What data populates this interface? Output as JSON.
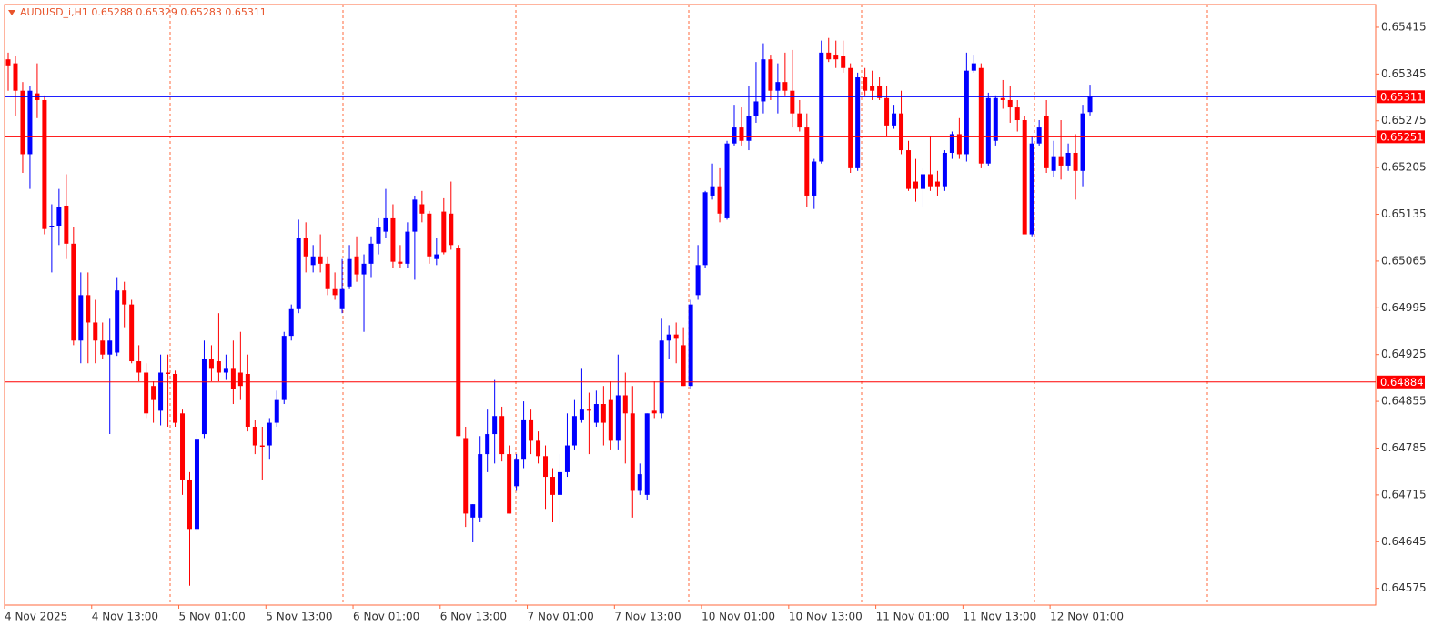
{
  "chart_data": {
    "type": "candlestick",
    "title": "AUDUSD_i,H1  0.65288 0.65329 0.65283 0.65311",
    "categories": [
      "4 Nov 2025",
      null,
      null,
      null,
      null,
      null,
      null,
      null,
      null,
      null,
      null,
      null,
      "4 Nov 13:00",
      null,
      null,
      null,
      null,
      null,
      null,
      null,
      null,
      null,
      null,
      null,
      "5 Nov 01:00",
      null,
      null,
      null,
      null,
      null,
      null,
      null,
      null,
      null,
      null,
      null,
      "5 Nov 13:00",
      null,
      null,
      null,
      null,
      null,
      null,
      null,
      null,
      null,
      null,
      null,
      "6 Nov 01:00",
      null,
      null,
      null,
      null,
      null,
      null,
      null,
      null,
      null,
      null,
      null,
      "6 Nov 13:00",
      null,
      null,
      null,
      null,
      null,
      null,
      null,
      null,
      null,
      null,
      null,
      "7 Nov 01:00",
      null,
      null,
      null,
      null,
      null,
      null,
      null,
      null,
      null,
      null,
      null,
      "7 Nov 13:00",
      null,
      null,
      null,
      null,
      null,
      null,
      null,
      null,
      null,
      null,
      null,
      "10 Nov 01:00",
      null,
      null,
      null,
      null,
      null,
      null,
      null,
      null,
      null,
      null,
      null,
      "10 Nov 13:00",
      null,
      null,
      null,
      null,
      null,
      null,
      null,
      null,
      null,
      null,
      null,
      "11 Nov 01:00",
      null,
      null,
      null,
      null,
      null,
      null,
      null,
      null,
      null,
      null,
      null,
      "11 Nov 13:00",
      null,
      null,
      null,
      null,
      null,
      null,
      null,
      null,
      null,
      null,
      null,
      "12 Nov 01:00",
      null,
      null,
      null,
      null,
      null
    ],
    "open": [
      0.65367,
      0.65361,
      0.6532,
      0.65225,
      0.65316,
      0.65306,
      0.65116,
      0.65118,
      0.65148,
      0.65091,
      0.64946,
      0.65014,
      0.64973,
      0.64946,
      0.64925,
      0.64928,
      0.65021,
      0.65,
      0.64915,
      0.64898,
      0.64878,
      0.64841,
      0.64898,
      0.64896,
      0.64837,
      0.64738,
      0.64664,
      0.64806,
      0.64919,
      0.64915,
      0.64898,
      0.64905,
      0.64898,
      0.64896,
      0.64817,
      0.64789,
      0.64789,
      0.64823,
      0.64857,
      0.64953,
      0.64993,
      0.65099,
      0.65059,
      0.65072,
      0.65061,
      0.65023,
      0.64993,
      0.65027,
      0.65072,
      0.65045,
      0.65061,
      0.65091,
      0.65109,
      0.65129,
      0.65064,
      0.65061,
      0.65109,
      0.6515,
      0.65136,
      0.65068,
      0.65139,
      0.65136,
      0.65085,
      0.648,
      0.64681,
      0.64681,
      0.64776,
      0.64806,
      0.64833,
      0.64776,
      0.64728,
      0.64769,
      0.64828,
      0.64796,
      0.64773,
      0.64742,
      0.64715,
      0.64749,
      0.64789,
      0.64828,
      0.64844,
      0.64823,
      0.64851,
      0.64857,
      0.64796,
      0.64864,
      0.64837,
      0.64721,
      0.64715,
      0.64841,
      0.64837,
      0.64946,
      0.64955,
      0.64939,
      0.64878,
      0.65014,
      0.65059,
      0.65163,
      0.65177,
      0.65129,
      0.65241,
      0.65265,
      0.65245,
      0.65282,
      0.65304,
      0.65367,
      0.6532,
      0.65333,
      0.6532,
      0.65286,
      0.65265,
      0.65163,
      0.65214,
      0.65377,
      0.65374,
      0.65372,
      0.65354,
      0.65204,
      0.6534,
      0.65327,
      0.65327,
      0.65309,
      0.65268,
      0.65286,
      0.65231,
      0.65184,
      0.65173,
      0.65195,
      0.65184,
      0.65177,
      0.65227,
      0.65255,
      0.65225,
      0.6535,
      0.65354,
      0.65211,
      0.65245,
      0.65309,
      0.65306,
      0.65295,
      0.65276,
      0.65105,
      0.65241,
      0.65282,
      0.652,
      0.65222,
      0.65208,
      0.65227,
      0.652,
      0.65288
    ],
    "high": [
      0.65377,
      0.65372,
      0.65333,
      0.65327,
      0.65361,
      0.65313,
      0.6515,
      0.65173,
      0.65195,
      0.65116,
      0.65048,
      0.65048,
      0.65007,
      0.64973,
      0.6498,
      0.65041,
      0.65034,
      0.65007,
      0.64939,
      0.64912,
      0.64885,
      0.64925,
      0.64925,
      0.64901,
      0.64844,
      0.64749,
      0.64806,
      0.64946,
      0.64939,
      0.64987,
      0.64925,
      0.64946,
      0.64959,
      0.64925,
      0.64827,
      0.64817,
      0.6483,
      0.64871,
      0.64959,
      0.65,
      0.65127,
      0.65123,
      0.65089,
      0.65105,
      0.65072,
      0.65048,
      0.65068,
      0.65089,
      0.65102,
      0.65075,
      0.65102,
      0.65129,
      0.65173,
      0.6515,
      0.65089,
      0.65123,
      0.65163,
      0.6517,
      0.6514,
      0.65099,
      0.65159,
      0.65184,
      0.65089,
      0.64817,
      0.64701,
      0.64803,
      0.64844,
      0.64887,
      0.64847,
      0.64789,
      0.64776,
      0.64855,
      0.64844,
      0.6481,
      0.64789,
      0.64755,
      0.64776,
      0.64837,
      0.64857,
      0.64905,
      0.64868,
      0.64871,
      0.64878,
      0.64885,
      0.64925,
      0.64898,
      0.64878,
      0.64762,
      0.64837,
      0.64885,
      0.6498,
      0.64969,
      0.64973,
      0.64966,
      0.65007,
      0.65089,
      0.6517,
      0.65211,
      0.65204,
      0.65245,
      0.65299,
      0.65295,
      0.65327,
      0.65363,
      0.65391,
      0.65374,
      0.65361,
      0.65377,
      0.65381,
      0.65306,
      0.65286,
      0.65218,
      0.65395,
      0.65399,
      0.65395,
      0.65395,
      0.65361,
      0.65347,
      0.65354,
      0.6535,
      0.6534,
      0.65327,
      0.65299,
      0.6532,
      0.65245,
      0.65218,
      0.65204,
      0.65252,
      0.652,
      0.65231,
      0.65259,
      0.65279,
      0.65377,
      0.65374,
      0.65361,
      0.65317,
      0.65313,
      0.65336,
      0.65327,
      0.65306,
      0.65282,
      0.65252,
      0.65276,
      0.65306,
      0.65245,
      0.65276,
      0.65241,
      0.65255,
      0.65299,
      0.65329
    ],
    "low": [
      0.6532,
      0.65282,
      0.65197,
      0.65173,
      0.65279,
      0.65105,
      0.65048,
      0.65089,
      0.65068,
      0.64939,
      0.64912,
      0.64912,
      0.64912,
      0.64919,
      0.64806,
      0.64923,
      0.64966,
      0.64912,
      0.64885,
      0.6483,
      0.64823,
      0.64819,
      0.64817,
      0.64817,
      0.64715,
      0.64579,
      0.6466,
      0.648,
      0.64885,
      0.64885,
      0.64887,
      0.64851,
      0.64857,
      0.6481,
      0.64776,
      0.64738,
      0.64769,
      0.64817,
      0.64851,
      0.64946,
      0.64987,
      0.65048,
      0.65048,
      0.65048,
      0.65014,
      0.65007,
      0.64987,
      0.65023,
      0.65034,
      0.64959,
      0.65041,
      0.65075,
      0.65099,
      0.65055,
      0.65055,
      0.65055,
      0.65037,
      0.65123,
      0.65061,
      0.65059,
      0.65075,
      0.65082,
      0.64803,
      0.64667,
      0.64644,
      0.64674,
      0.64749,
      0.64762,
      0.64765,
      0.64687,
      0.64721,
      0.64755,
      0.64776,
      0.64762,
      0.64694,
      0.64674,
      0.64671,
      0.64742,
      0.64783,
      0.64823,
      0.64776,
      0.64817,
      0.64789,
      0.64783,
      0.64783,
      0.64762,
      0.64681,
      0.64715,
      0.64708,
      0.6483,
      0.6483,
      0.64919,
      0.64912,
      0.64878,
      0.64874,
      0.65007,
      0.65055,
      0.65157,
      0.65123,
      0.65127,
      0.65238,
      0.65238,
      0.65231,
      0.65272,
      0.65286,
      0.65306,
      0.65286,
      0.65313,
      0.65265,
      0.65259,
      0.65146,
      0.65143,
      0.65211,
      0.65363,
      0.65354,
      0.65347,
      0.65197,
      0.652,
      0.65313,
      0.65306,
      0.65306,
      0.65252,
      0.65263,
      0.65225,
      0.6517,
      0.65154,
      0.65146,
      0.6517,
      0.65163,
      0.6517,
      0.65218,
      0.65218,
      0.65214,
      0.65347,
      0.65204,
      0.65208,
      0.65238,
      0.65293,
      0.65272,
      0.65259,
      0.65105,
      0.65102,
      0.65238,
      0.65197,
      0.65191,
      0.65187,
      0.652,
      0.65157,
      0.65177,
      0.65283
    ],
    "close": [
      0.65358,
      0.6532,
      0.65225,
      0.6532,
      0.65306,
      0.65113,
      0.65118,
      0.65146,
      0.65091,
      0.64946,
      0.65014,
      0.64973,
      0.64946,
      0.64925,
      0.64946,
      0.65021,
      0.65,
      0.64915,
      0.64898,
      0.64837,
      0.64857,
      0.64898,
      0.64896,
      0.64823,
      0.64738,
      0.64664,
      0.64799,
      0.64919,
      0.64905,
      0.64898,
      0.64905,
      0.64874,
      0.64878,
      0.64817,
      0.64789,
      0.64787,
      0.64823,
      0.64857,
      0.64953,
      0.64993,
      0.65099,
      0.65072,
      0.65072,
      0.65061,
      0.65023,
      0.65014,
      0.65023,
      0.65068,
      0.65045,
      0.65061,
      0.65091,
      0.65116,
      0.65129,
      0.65064,
      0.65061,
      0.65109,
      0.65157,
      0.65136,
      0.65072,
      0.65075,
      0.65078,
      0.65089,
      0.64803,
      0.64687,
      0.64701,
      0.64776,
      0.64806,
      0.64833,
      0.64776,
      0.64687,
      0.64769,
      0.64828,
      0.64796,
      0.64773,
      0.64742,
      0.64715,
      0.64749,
      0.64789,
      0.64833,
      0.64844,
      0.64841,
      0.64851,
      0.64823,
      0.64796,
      0.64864,
      0.64837,
      0.64721,
      0.64746,
      0.64837,
      0.64837,
      0.64946,
      0.64955,
      0.6495,
      0.64878,
      0.65,
      0.65059,
      0.65168,
      0.65177,
      0.65136,
      0.65241,
      0.65265,
      0.65245,
      0.65282,
      0.65304,
      0.65367,
      0.6532,
      0.65333,
      0.6532,
      0.65286,
      0.65265,
      0.65163,
      0.65214,
      0.65377,
      0.65367,
      0.65367,
      0.65354,
      0.65204,
      0.6534,
      0.6532,
      0.6532,
      0.65309,
      0.65268,
      0.65286,
      0.65231,
      0.65173,
      0.65173,
      0.65195,
      0.65177,
      0.65177,
      0.65227,
      0.65255,
      0.65225,
      0.6535,
      0.65361,
      0.65211,
      0.65309,
      0.65309,
      0.65306,
      0.65295,
      0.65276,
      0.65105,
      0.65241,
      0.65265,
      0.65204,
      0.65222,
      0.65208,
      0.65227,
      0.652,
      0.65286,
      0.65311
    ],
    "up_color": "#0000ff",
    "down_color": "#ff0000",
    "ylim": [
      0.6455,
      0.65449
    ],
    "yticks": [
      0.65415,
      0.65345,
      0.65275,
      0.65205,
      0.65135,
      0.65065,
      0.64995,
      0.64925,
      0.64855,
      0.64785,
      0.64715,
      0.64645,
      0.64575
    ],
    "hlines": [
      {
        "value": 0.65311,
        "color": "#0000ff",
        "label_color": "#ff0000"
      },
      {
        "value": 0.65251,
        "color": "#ff0000",
        "label_color": "#ff0000"
      },
      {
        "value": 0.64884,
        "color": "#ff0000",
        "label_color": "#ff0000"
      }
    ]
  }
}
